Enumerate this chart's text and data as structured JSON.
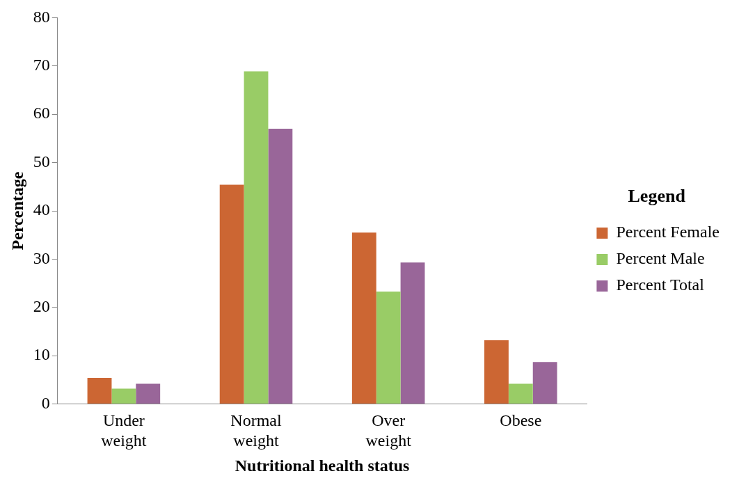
{
  "chart_data": {
    "type": "bar",
    "xlabel": "Nutritional health status",
    "ylabel": "Percentage",
    "legend_title": "Legend",
    "categories": [
      "Under weight",
      "Normal weight",
      "Over weight",
      "Obese"
    ],
    "series": [
      {
        "name": "Percent Female",
        "color": "#cc6633",
        "values": [
          5.4,
          45.4,
          35.5,
          13.2
        ]
      },
      {
        "name": "Percent Male",
        "color": "#99cc66",
        "values": [
          3.2,
          68.9,
          23.3,
          4.2
        ]
      },
      {
        "name": "Percent Total",
        "color": "#996699",
        "values": [
          4.2,
          57.0,
          29.3,
          8.7
        ]
      }
    ],
    "ylim": [
      0,
      80
    ],
    "yticks": [
      0,
      10,
      20,
      30,
      40,
      50,
      60,
      70,
      80
    ],
    "grid": false,
    "legend": "right"
  }
}
